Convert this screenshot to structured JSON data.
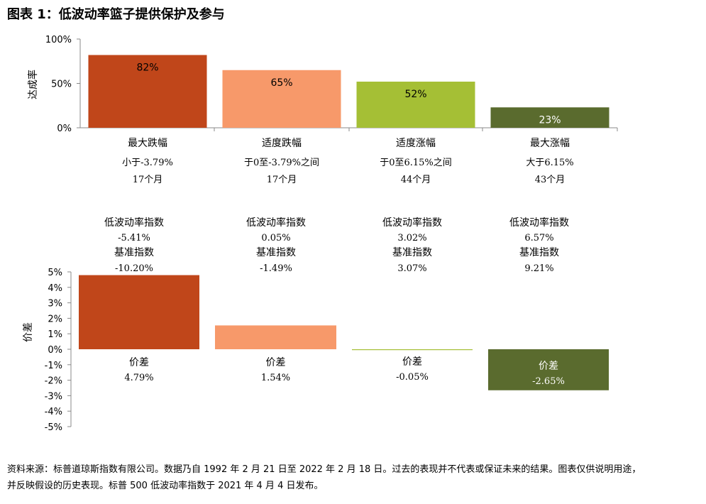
{
  "title": "图表 1：低波动率篮子提供保护及参与",
  "colors": [
    "#c0461a",
    "#f7996a",
    "#a5bf35",
    "#5a6b2e"
  ],
  "chart_data": [
    {
      "type": "bar",
      "ylabel": "达成率",
      "ylim": [
        0,
        100
      ],
      "yticks": [
        "0%",
        "50%",
        "100%"
      ],
      "categories": [
        {
          "name": "最大跌幅",
          "range": "小于-3.79%",
          "months": "17个月"
        },
        {
          "name": "适度跌幅",
          "range": "于0至-3.79%之间",
          "months": "17个月"
        },
        {
          "name": "适度涨幅",
          "range": "于0至6.15%之间",
          "months": "44个月"
        },
        {
          "name": "最大涨幅",
          "range": "大于6.15%",
          "months": "43个月"
        }
      ],
      "values": [
        82,
        65,
        52,
        23
      ],
      "data_labels": [
        "82%",
        "65%",
        "52%",
        "23%"
      ]
    },
    {
      "type": "bar",
      "ylabel": "价差",
      "ylim": [
        -5,
        5
      ],
      "yticks": [
        "5%",
        "4%",
        "3%",
        "2%",
        "1%",
        "0%",
        "-1%",
        "-2%",
        "-3%",
        "-4%",
        "-5%"
      ],
      "index_label": "低波动率指数",
      "benchmark_label": "基准指数",
      "spread_label": "价差",
      "index_returns": [
        "-5.41%",
        "0.05%",
        "3.02%",
        "6.57%"
      ],
      "benchmark_returns": [
        "-10.20%",
        "-1.49%",
        "3.07%",
        "9.21%"
      ],
      "values": [
        4.79,
        1.54,
        -0.05,
        -2.65
      ],
      "data_labels": [
        "4.79%",
        "1.54%",
        "-0.05%",
        "-2.65%"
      ]
    }
  ],
  "source_lines": [
    "资料来源：标普道琼斯指数有限公司。数据乃自 1992 年 2 月 21 日至 2022 年 2 月 18 日。过去的表现并不代表或保证未来的结果。图表仅供说明用途，",
    "并反映假设的历史表现。标普 500 低波动率指数于 2021 年 4 月 4 日发布。"
  ]
}
